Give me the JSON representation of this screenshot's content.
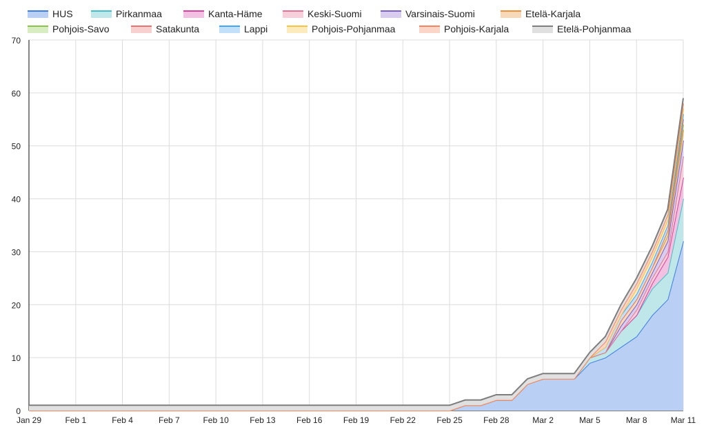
{
  "chart_data": {
    "type": "area",
    "stacked": true,
    "title": "",
    "xlabel": "",
    "ylabel": "",
    "ylim": [
      0,
      70
    ],
    "yticks": [
      0,
      10,
      20,
      30,
      40,
      50,
      60,
      70
    ],
    "grid": true,
    "legend_position": "top",
    "dates": [
      "Jan 29",
      "Jan 30",
      "Jan 31",
      "Feb 1",
      "Feb 2",
      "Feb 3",
      "Feb 4",
      "Feb 5",
      "Feb 6",
      "Feb 7",
      "Feb 8",
      "Feb 9",
      "Feb 10",
      "Feb 11",
      "Feb 12",
      "Feb 13",
      "Feb 14",
      "Feb 15",
      "Feb 16",
      "Feb 17",
      "Feb 18",
      "Feb 19",
      "Feb 20",
      "Feb 21",
      "Feb 22",
      "Feb 23",
      "Feb 24",
      "Feb 25",
      "Feb 26",
      "Feb 27",
      "Feb 28",
      "Feb 29",
      "Mar 1",
      "Mar 2",
      "Mar 3",
      "Mar 4",
      "Mar 5",
      "Mar 6",
      "Mar 7",
      "Mar 8",
      "Mar 9",
      "Mar 10",
      "Mar 11"
    ],
    "x_tick_labels": [
      "Jan 29",
      "Feb 1",
      "Feb 4",
      "Feb 7",
      "Feb 10",
      "Feb 13",
      "Feb 16",
      "Feb 19",
      "Feb 22",
      "Feb 25",
      "Feb 28",
      "Mar 2",
      "Mar 5",
      "Mar 8",
      "Mar 11"
    ],
    "series": [
      {
        "name": "HUS",
        "color": "#3d7de0",
        "fill": "#b9d0f4",
        "values": [
          0,
          0,
          0,
          0,
          0,
          0,
          0,
          0,
          0,
          0,
          0,
          0,
          0,
          0,
          0,
          0,
          0,
          0,
          0,
          0,
          0,
          0,
          0,
          0,
          0,
          0,
          0,
          0,
          1,
          1,
          2,
          2,
          5,
          6,
          6,
          6,
          9,
          10,
          12,
          14,
          18,
          21,
          32
        ]
      },
      {
        "name": "Pirkanmaa",
        "color": "#46bdc6",
        "fill": "#bfe7ea",
        "values": [
          0,
          0,
          0,
          0,
          0,
          0,
          0,
          0,
          0,
          0,
          0,
          0,
          0,
          0,
          0,
          0,
          0,
          0,
          0,
          0,
          0,
          0,
          0,
          0,
          0,
          0,
          0,
          0,
          0,
          0,
          0,
          0,
          0,
          0,
          0,
          0,
          1,
          1,
          3,
          4,
          5,
          5,
          8
        ]
      },
      {
        "name": "Kanta-Häme",
        "color": "#d6409f",
        "fill": "#f2c0e0",
        "values": [
          0,
          0,
          0,
          0,
          0,
          0,
          0,
          0,
          0,
          0,
          0,
          0,
          0,
          0,
          0,
          0,
          0,
          0,
          0,
          0,
          0,
          0,
          0,
          0,
          0,
          0,
          0,
          0,
          0,
          0,
          0,
          0,
          0,
          0,
          0,
          0,
          0,
          0,
          0,
          0,
          1,
          3,
          4
        ]
      },
      {
        "name": "Keski-Suomi",
        "color": "#e07496",
        "fill": "#f7cfdb",
        "values": [
          0,
          0,
          0,
          0,
          0,
          0,
          0,
          0,
          0,
          0,
          0,
          0,
          0,
          0,
          0,
          0,
          0,
          0,
          0,
          0,
          0,
          0,
          0,
          0,
          0,
          0,
          0,
          0,
          0,
          0,
          0,
          0,
          0,
          0,
          0,
          0,
          0,
          0,
          0,
          1,
          1,
          1,
          4
        ]
      },
      {
        "name": "Varsinais-Suomi",
        "color": "#7b5fc4",
        "fill": "#d8cdee",
        "values": [
          0,
          0,
          0,
          0,
          0,
          0,
          0,
          0,
          0,
          0,
          0,
          0,
          0,
          0,
          0,
          0,
          0,
          0,
          0,
          0,
          0,
          0,
          0,
          0,
          0,
          0,
          0,
          0,
          0,
          0,
          0,
          0,
          0,
          0,
          0,
          0,
          0,
          0,
          1,
          1,
          1,
          2,
          3
        ]
      },
      {
        "name": "Etelä-Karjala",
        "color": "#e8903c",
        "fill": "#f7d9b9",
        "values": [
          0,
          0,
          0,
          0,
          0,
          0,
          0,
          0,
          0,
          0,
          0,
          0,
          0,
          0,
          0,
          0,
          0,
          0,
          0,
          0,
          0,
          0,
          0,
          0,
          0,
          0,
          0,
          0,
          0,
          0,
          0,
          0,
          0,
          0,
          0,
          0,
          0,
          0,
          1,
          1,
          1,
          1,
          2
        ]
      },
      {
        "name": "Pohjois-Savo",
        "color": "#8bc34a",
        "fill": "#d8eec2",
        "values": [
          0,
          0,
          0,
          0,
          0,
          0,
          0,
          0,
          0,
          0,
          0,
          0,
          0,
          0,
          0,
          0,
          0,
          0,
          0,
          0,
          0,
          0,
          0,
          0,
          0,
          0,
          0,
          0,
          0,
          0,
          0,
          0,
          0,
          0,
          0,
          0,
          0,
          0,
          0,
          0,
          0,
          1,
          1
        ]
      },
      {
        "name": "Satakunta",
        "color": "#e57373",
        "fill": "#f8d0d0",
        "values": [
          0,
          0,
          0,
          0,
          0,
          0,
          0,
          0,
          0,
          0,
          0,
          0,
          0,
          0,
          0,
          0,
          0,
          0,
          0,
          0,
          0,
          0,
          0,
          0,
          0,
          0,
          0,
          0,
          0,
          0,
          0,
          0,
          0,
          0,
          0,
          0,
          0,
          0,
          0,
          0,
          0,
          0,
          1
        ]
      },
      {
        "name": "Lappi",
        "color": "#42a5f5",
        "fill": "#c3e0fb",
        "values": [
          0,
          0,
          0,
          0,
          0,
          0,
          0,
          0,
          0,
          0,
          0,
          0,
          0,
          0,
          0,
          0,
          0,
          0,
          0,
          0,
          0,
          0,
          0,
          0,
          0,
          0,
          0,
          0,
          0,
          0,
          0,
          0,
          0,
          0,
          0,
          0,
          0,
          1,
          1,
          1,
          1,
          1,
          1
        ]
      },
      {
        "name": "Pohjois-Pohjanmaa",
        "color": "#f6c342",
        "fill": "#fcebbd",
        "values": [
          0,
          0,
          0,
          0,
          0,
          0,
          0,
          0,
          0,
          0,
          0,
          0,
          0,
          0,
          0,
          0,
          0,
          0,
          0,
          0,
          0,
          0,
          0,
          0,
          0,
          0,
          0,
          0,
          0,
          0,
          0,
          0,
          0,
          0,
          0,
          0,
          0,
          0,
          0,
          1,
          1,
          1,
          1
        ]
      },
      {
        "name": "Pohjois-Karjala",
        "color": "#f4845f",
        "fill": "#fbd6c8",
        "values": [
          0,
          0,
          0,
          0,
          0,
          0,
          0,
          0,
          0,
          0,
          0,
          0,
          0,
          0,
          0,
          0,
          0,
          0,
          0,
          0,
          0,
          0,
          0,
          0,
          0,
          0,
          0,
          0,
          0,
          0,
          0,
          0,
          0,
          0,
          0,
          0,
          0,
          1,
          1,
          1,
          1,
          1,
          1
        ]
      },
      {
        "name": "Etelä-Pohjanmaa",
        "color": "#7d7d7d",
        "fill": "#e0e0e0",
        "values": [
          1,
          1,
          1,
          1,
          1,
          1,
          1,
          1,
          1,
          1,
          1,
          1,
          1,
          1,
          1,
          1,
          1,
          1,
          1,
          1,
          1,
          1,
          1,
          1,
          1,
          1,
          1,
          1,
          1,
          1,
          1,
          1,
          1,
          1,
          1,
          1,
          1,
          1,
          1,
          1,
          1,
          1,
          1
        ]
      }
    ]
  }
}
